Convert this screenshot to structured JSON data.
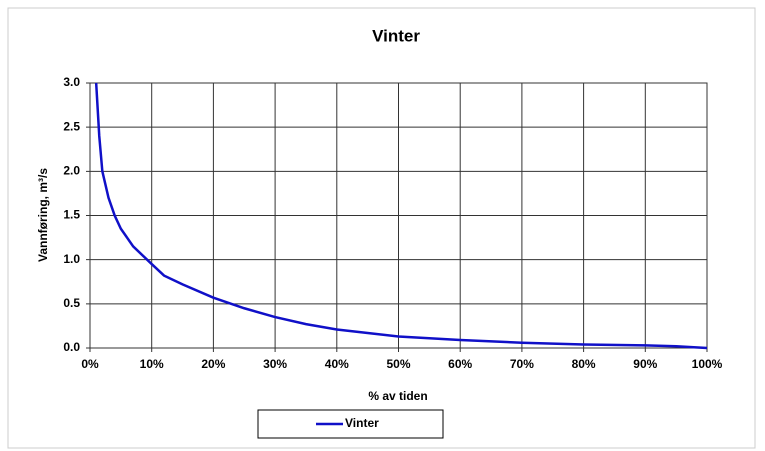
{
  "chart_data": {
    "type": "line",
    "title": "Vinter",
    "x_label": "% av tiden",
    "y_label": "Vannføring, m³/s",
    "x": [
      1,
      1.5,
      2,
      3,
      4,
      5,
      7,
      10,
      12,
      15,
      20,
      25,
      30,
      35,
      40,
      45,
      50,
      60,
      70,
      80,
      90,
      95,
      100
    ],
    "series": [
      {
        "name": "Vinter",
        "color": "#1010c8",
        "values": [
          3.0,
          2.4,
          2.0,
          1.7,
          1.5,
          1.35,
          1.15,
          0.95,
          0.82,
          0.72,
          0.57,
          0.45,
          0.35,
          0.27,
          0.21,
          0.17,
          0.13,
          0.09,
          0.06,
          0.04,
          0.03,
          0.02,
          0.0
        ]
      }
    ],
    "xlim": [
      0,
      100
    ],
    "xticks": [
      {
        "value": 0,
        "label": "0%"
      },
      {
        "value": 10,
        "label": "10%"
      },
      {
        "value": 20,
        "label": "20%"
      },
      {
        "value": 30,
        "label": "30%"
      },
      {
        "value": 40,
        "label": "40%"
      },
      {
        "value": 50,
        "label": "50%"
      },
      {
        "value": 60,
        "label": "60%"
      },
      {
        "value": 70,
        "label": "70%"
      },
      {
        "value": 80,
        "label": "80%"
      },
      {
        "value": 90,
        "label": "90%"
      },
      {
        "value": 100,
        "label": "100%"
      }
    ],
    "ylim": [
      0,
      3
    ],
    "yticks": [
      {
        "value": 0,
        "label": "0.0"
      },
      0.5,
      {
        "value": 1,
        "label": "1.0"
      },
      1.5,
      {
        "value": 2,
        "label": "2.0"
      },
      2.5,
      {
        "value": 3,
        "label": "3.0"
      }
    ],
    "grid": true,
    "legend": "bottom"
  }
}
